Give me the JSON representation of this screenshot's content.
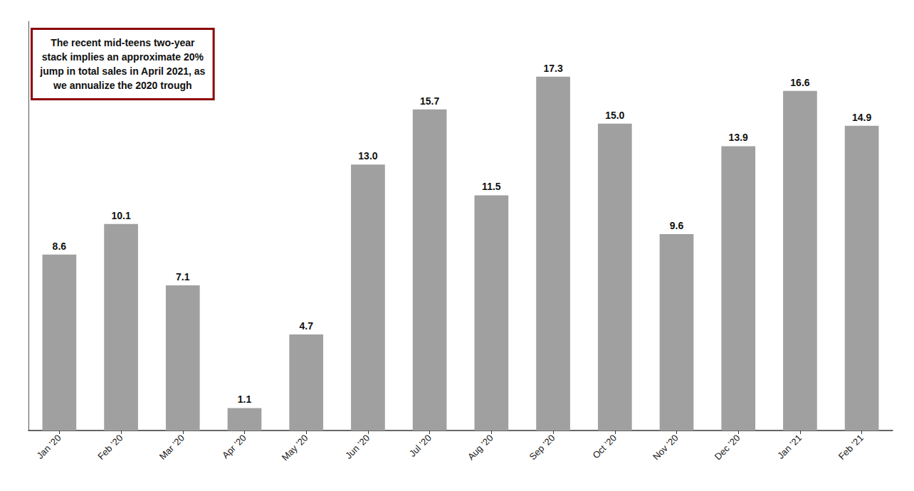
{
  "chart_data": {
    "type": "bar",
    "categories": [
      "Jan ’20",
      "Feb ’20",
      "Mar ’20",
      "Apr ’20",
      "May ’20",
      "Jun ’20",
      "Jul ’20",
      "Aug ’20",
      "Sep ’20",
      "Oct ’20",
      "Nov ’20",
      "Dec ’20",
      "Jan ’21",
      "Feb ’21"
    ],
    "values": [
      8.6,
      10.1,
      7.1,
      1.1,
      4.7,
      13.0,
      15.7,
      11.5,
      17.3,
      15.0,
      9.6,
      13.9,
      16.6,
      14.9
    ],
    "value_labels": [
      "8.6",
      "10.1",
      "7.1",
      "1.1",
      "4.7",
      "13.0",
      "15.7",
      "11.5",
      "17.3",
      "15.0",
      "9.6",
      "13.9",
      "16.6",
      "14.9"
    ],
    "color": "#a0a0a0",
    "ylim": [
      0,
      20
    ],
    "grid": false,
    "data_labels": true,
    "tick_labels": "x",
    "annotation": "The recent mid-teens two-year\nstack implies an approximate 20%\njump in total sales in April 2021, as\nwe annualize the 2020 trough"
  }
}
